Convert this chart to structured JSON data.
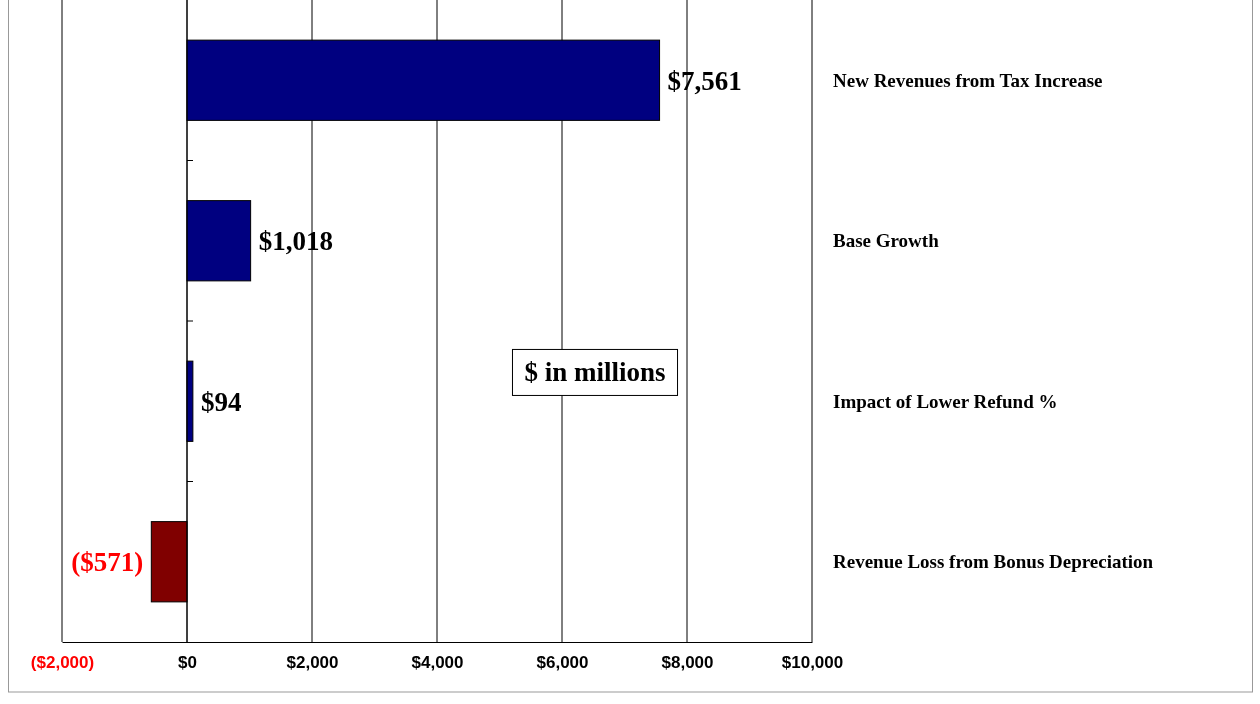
{
  "chart_data": {
    "type": "bar",
    "orientation": "horizontal",
    "categories": [
      "New Revenues from Tax Increase",
      "Base Growth",
      "Impact of Lower Refund %",
      "Revenue Loss from Bonus Depreciation"
    ],
    "values": [
      7561,
      1018,
      94,
      -571
    ],
    "colors": [
      "#000080",
      "#000080",
      "#000080",
      "#800000"
    ],
    "value_labels": [
      "$7,561",
      "$1,018",
      "$94",
      "($571)"
    ],
    "xlim": [
      -2000,
      10000
    ],
    "xticks": [
      {
        "value": -2000,
        "label": "($2,000)"
      },
      {
        "value": 0,
        "label": "$0"
      },
      {
        "value": 2000,
        "label": "$2,000"
      },
      {
        "value": 4000,
        "label": "$4,000"
      },
      {
        "value": 6000,
        "label": "$6,000"
      },
      {
        "value": 8000,
        "label": "$8,000"
      },
      {
        "value": 10000,
        "label": "$10,000"
      }
    ],
    "grid": "x",
    "annotations": [
      "$ in millions"
    ]
  }
}
